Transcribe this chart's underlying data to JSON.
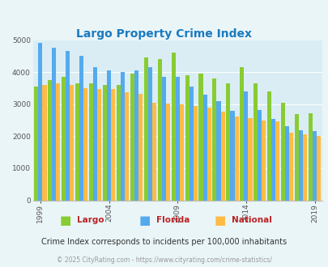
{
  "title": "Largo Property Crime Index",
  "years": [
    1999,
    2000,
    2001,
    2002,
    2003,
    2004,
    2005,
    2006,
    2007,
    2008,
    2009,
    2010,
    2011,
    2012,
    2013,
    2014,
    2015,
    2016,
    2017,
    2018,
    2019
  ],
  "largo": [
    3550,
    3750,
    3850,
    3650,
    3650,
    3600,
    3600,
    3950,
    4450,
    4400,
    4600,
    3900,
    3950,
    3800,
    3650,
    4150,
    3650,
    3400,
    3050,
    2700,
    2720
  ],
  "florida": [
    4900,
    4750,
    4650,
    4500,
    4150,
    4050,
    4000,
    4050,
    4150,
    3850,
    3850,
    3550,
    3300,
    3100,
    2800,
    3400,
    2820,
    2530,
    2300,
    2180,
    2150
  ],
  "national": [
    3600,
    3650,
    3600,
    3500,
    3480,
    3480,
    3380,
    3320,
    3050,
    3020,
    2980,
    2930,
    2900,
    2760,
    2620,
    2560,
    2490,
    2460,
    2100,
    2060,
    2020
  ],
  "largo_color": "#88cc33",
  "florida_color": "#55aaee",
  "national_color": "#ffbb44",
  "bg_color": "#eaf5f8",
  "plot_bg": "#daedf5",
  "ylim": [
    0,
    5000
  ],
  "yticks": [
    0,
    1000,
    2000,
    3000,
    4000,
    5000
  ],
  "xlabel_years": [
    1999,
    2004,
    2009,
    2014,
    2019
  ],
  "subtitle": "Crime Index corresponds to incidents per 100,000 inhabitants",
  "footer": "© 2025 CityRating.com - https://www.cityrating.com/crime-statistics/",
  "title_color": "#1a7bbf",
  "legend_label_color": "#bb2222",
  "subtitle_color": "#333333",
  "footer_color": "#999999"
}
